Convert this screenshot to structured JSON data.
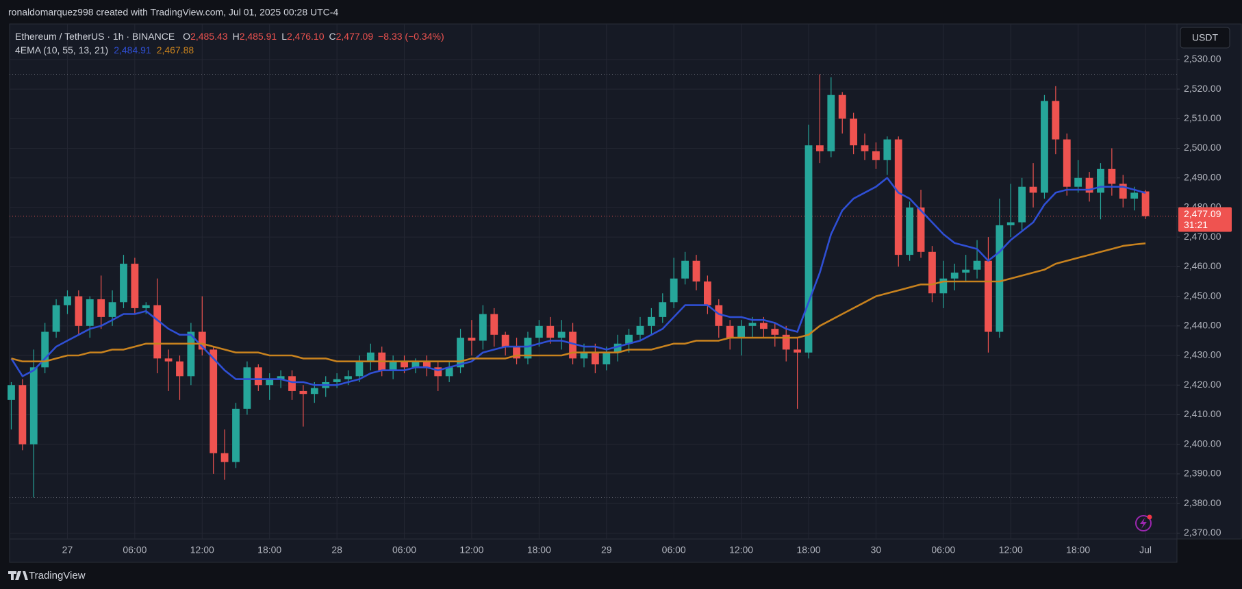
{
  "chart_data": {
    "type": "candlestick",
    "attribution": "ronaldomarquez998 created with TradingView.com, Jul 01, 2025 00:28 UTC-4",
    "legend": {
      "symbol": "Ethereum / TetherUS · 1h · BINANCE",
      "ohlc": [
        {
          "key": "O",
          "value": "2,485.43"
        },
        {
          "key": "H",
          "value": "2,485.91"
        },
        {
          "key": "L",
          "value": "2,476.10"
        },
        {
          "key": "C",
          "value": "2,477.09"
        }
      ],
      "change": "−8.33 (−0.34%)"
    },
    "currency": "USDT",
    "last_price_label": "2,477.09",
    "countdown": "31:21",
    "footer": "TradingView",
    "up_color": "#26a69a",
    "down_color": "#ef5350",
    "grid": true,
    "open": [
      2415,
      2420,
      2400,
      2426,
      2438,
      2447,
      2450,
      2440,
      2449,
      2443,
      2448,
      2461,
      2446,
      2447,
      2429,
      2428,
      2423,
      2438,
      2432,
      2397,
      2394,
      2412,
      2426,
      2420,
      2422,
      2423,
      2418,
      2417,
      2419,
      2421,
      2422,
      2423,
      2428,
      2431,
      2425,
      2428,
      2426,
      2428,
      2426,
      2423,
      2426,
      2436,
      2435,
      2444,
      2437,
      2433,
      2429,
      2436,
      2440,
      2436,
      2438,
      2429,
      2431,
      2427,
      2431,
      2434,
      2437,
      2440,
      2443,
      2448,
      2456,
      2462,
      2455,
      2447,
      2440,
      2436,
      2440,
      2441,
      2439,
      2437,
      2432,
      2431,
      2501,
      2499,
      2518,
      2510,
      2501,
      2499,
      2496,
      2503,
      2464,
      2480,
      2465,
      2451,
      2456,
      2458,
      2459,
      2462,
      2438,
      2474,
      2475,
      2487,
      2485,
      2516,
      2503,
      2487,
      2490,
      2485,
      2493,
      2488,
      2483,
      2485.43
    ],
    "high": [
      2421,
      2422,
      2432,
      2441,
      2449,
      2452,
      2452,
      2450,
      2457,
      2452,
      2464,
      2463,
      2448,
      2456,
      2432,
      2430,
      2441,
      2450,
      2433,
      2405,
      2414,
      2428,
      2427,
      2424,
      2425,
      2425,
      2420,
      2421,
      2423,
      2424,
      2425,
      2430,
      2434,
      2433,
      2430,
      2430,
      2429,
      2430,
      2428,
      2428,
      2439,
      2442,
      2447,
      2446,
      2438,
      2436,
      2438,
      2442,
      2443,
      2442,
      2441,
      2434,
      2434,
      2433,
      2437,
      2439,
      2443,
      2446,
      2451,
      2463,
      2465,
      2464,
      2457,
      2449,
      2442,
      2442,
      2443,
      2443,
      2441,
      2440,
      2436,
      2508,
      2525,
      2524,
      2519,
      2512,
      2505,
      2502,
      2504,
      2504,
      2482,
      2486,
      2467,
      2462,
      2461,
      2464,
      2469,
      2470,
      2483,
      2488,
      2490,
      2495,
      2518,
      2521,
      2505,
      2496,
      2492,
      2495,
      2500,
      2491,
      2487,
      2485.91
    ],
    "low": [
      2405,
      2398,
      2382,
      2424,
      2436,
      2444,
      2437,
      2436,
      2439,
      2440,
      2446,
      2444,
      2444,
      2424,
      2418,
      2415,
      2420,
      2430,
      2390,
      2388,
      2392,
      2410,
      2418,
      2415,
      2419,
      2415,
      2406,
      2414,
      2416,
      2419,
      2420,
      2421,
      2425,
      2423,
      2422,
      2424,
      2424,
      2423,
      2418,
      2421,
      2424,
      2430,
      2432,
      2433,
      2430,
      2427,
      2427,
      2433,
      2434,
      2432,
      2427,
      2426,
      2424,
      2425,
      2428,
      2431,
      2435,
      2437,
      2441,
      2446,
      2454,
      2452,
      2444,
      2436,
      2432,
      2430,
      2436,
      2436,
      2433,
      2428,
      2412,
      2429,
      2495,
      2497,
      2505,
      2498,
      2496,
      2493,
      2491,
      2460,
      2462,
      2463,
      2448,
      2446,
      2452,
      2455,
      2456,
      2431,
      2436,
      2470,
      2472,
      2480,
      2483,
      2498,
      2484,
      2485,
      2482,
      2476,
      2484,
      2480,
      2479,
      2476.1
    ],
    "close": [
      2420,
      2400,
      2426,
      2438,
      2447,
      2450,
      2440,
      2449,
      2443,
      2448,
      2461,
      2446,
      2447,
      2429,
      2428,
      2423,
      2438,
      2432,
      2397,
      2394,
      2412,
      2426,
      2420,
      2422,
      2423,
      2418,
      2417,
      2419,
      2421,
      2422,
      2423,
      2428,
      2431,
      2425,
      2428,
      2426,
      2428,
      2426,
      2423,
      2426,
      2436,
      2435,
      2444,
      2437,
      2433,
      2429,
      2436,
      2440,
      2436,
      2438,
      2429,
      2431,
      2427,
      2431,
      2434,
      2437,
      2440,
      2443,
      2448,
      2456,
      2462,
      2455,
      2447,
      2440,
      2436,
      2440,
      2441,
      2439,
      2437,
      2432,
      2431,
      2501,
      2499,
      2518,
      2510,
      2501,
      2499,
      2496,
      2503,
      2464,
      2480,
      2465,
      2451,
      2456,
      2458,
      2459,
      2462,
      2438,
      2474,
      2475,
      2487,
      2485,
      2516,
      2503,
      2487,
      2490,
      2485,
      2493,
      2488,
      2483,
      2485,
      2477.09
    ],
    "indicator": {
      "label": "4EMA (10, 55, 13, 21)",
      "series": [
        {
          "color": "#2f4fd4",
          "value_label": "2,484.91",
          "values": [
            2429,
            2423,
            2425,
            2429,
            2433,
            2435,
            2437,
            2439,
            2440,
            2442,
            2444,
            2444,
            2445,
            2442,
            2439,
            2437,
            2437,
            2433,
            2429,
            2425,
            2422,
            2422,
            2422,
            2422,
            2422,
            2421,
            2421,
            2420,
            2420,
            2420,
            2421,
            2422,
            2424,
            2425,
            2425,
            2425,
            2426,
            2426,
            2425,
            2426,
            2427,
            2428,
            2431,
            2432,
            2433,
            2433,
            2433,
            2434,
            2435,
            2435,
            2434,
            2433,
            2433,
            2432,
            2433,
            2434,
            2435,
            2437,
            2439,
            2443,
            2447,
            2447,
            2447,
            2444,
            2443,
            2443,
            2442,
            2442,
            2441,
            2439,
            2438,
            2448,
            2458,
            2471,
            2479,
            2483,
            2485,
            2487,
            2490,
            2485,
            2483,
            2479,
            2475,
            2471,
            2468,
            2467,
            2466,
            2462,
            2465,
            2469,
            2472,
            2475,
            2481,
            2485,
            2486,
            2486,
            2486,
            2487,
            2487,
            2487,
            2486,
            2484.91
          ]
        },
        {
          "color": "#c8821e",
          "value_label": "2,467.88",
          "values": [
            2429,
            2428,
            2428,
            2428,
            2429,
            2430,
            2430,
            2431,
            2431,
            2432,
            2432,
            2433,
            2434,
            2434,
            2434,
            2434,
            2434,
            2434,
            2433,
            2432,
            2431,
            2431,
            2431,
            2430,
            2430,
            2430,
            2429,
            2429,
            2429,
            2428,
            2428,
            2428,
            2428,
            2428,
            2428,
            2428,
            2428,
            2428,
            2428,
            2428,
            2428,
            2429,
            2429,
            2429,
            2429,
            2430,
            2430,
            2430,
            2430,
            2430,
            2431,
            2431,
            2431,
            2431,
            2431,
            2432,
            2432,
            2432,
            2433,
            2434,
            2434,
            2435,
            2435,
            2435,
            2436,
            2436,
            2436,
            2436,
            2436,
            2436,
            2436,
            2437,
            2440,
            2442,
            2444,
            2446,
            2448,
            2450,
            2451,
            2452,
            2453,
            2454,
            2454,
            2455,
            2455,
            2455,
            2455,
            2455,
            2455,
            2456,
            2457,
            2458,
            2459,
            2461,
            2462,
            2463,
            2464,
            2465,
            2466,
            2467,
            2467.5,
            2467.88
          ]
        }
      ]
    },
    "xlim": [
      -0.15,
      103.8
    ],
    "xticks": [
      {
        "value": 5,
        "label": "27"
      },
      {
        "value": 11,
        "label": "06:00"
      },
      {
        "value": 17,
        "label": "12:00"
      },
      {
        "value": 23,
        "label": "18:00"
      },
      {
        "value": 29,
        "label": "28"
      },
      {
        "value": 35,
        "label": "06:00"
      },
      {
        "value": 41,
        "label": "12:00"
      },
      {
        "value": 47,
        "label": "18:00"
      },
      {
        "value": 53,
        "label": "29"
      },
      {
        "value": 59,
        "label": "06:00"
      },
      {
        "value": 65,
        "label": "12:00"
      },
      {
        "value": 71,
        "label": "18:00"
      },
      {
        "value": 77,
        "label": "30"
      },
      {
        "value": 83,
        "label": "06:00"
      },
      {
        "value": 89,
        "label": "12:00"
      },
      {
        "value": 95,
        "label": "18:00"
      },
      {
        "value": 101,
        "label": "Jul"
      }
    ],
    "ylim": [
      2368,
      2542
    ],
    "yticks": [
      {
        "value": 2370,
        "label": "2,370.00"
      },
      {
        "value": 2380,
        "label": "2,380.00"
      },
      {
        "value": 2390,
        "label": "2,390.00"
      },
      {
        "value": 2400,
        "label": "2,400.00"
      },
      {
        "value": 2410,
        "label": "2,410.00"
      },
      {
        "value": 2420,
        "label": "2,420.00"
      },
      {
        "value": 2430,
        "label": "2,430.00"
      },
      {
        "value": 2440,
        "label": "2,440.00"
      },
      {
        "value": 2450,
        "label": "2,450.00"
      },
      {
        "value": 2460,
        "label": "2,460.00"
      },
      {
        "value": 2470,
        "label": "2,470.00"
      },
      {
        "value": 2480,
        "label": "2,480.00"
      },
      {
        "value": 2490,
        "label": "2,490.00"
      },
      {
        "value": 2500,
        "label": "2,500.00"
      },
      {
        "value": 2510,
        "label": "2,510.00"
      },
      {
        "value": 2520,
        "label": "2,520.00"
      },
      {
        "value": 2530,
        "label": "2,530.00"
      }
    ]
  }
}
